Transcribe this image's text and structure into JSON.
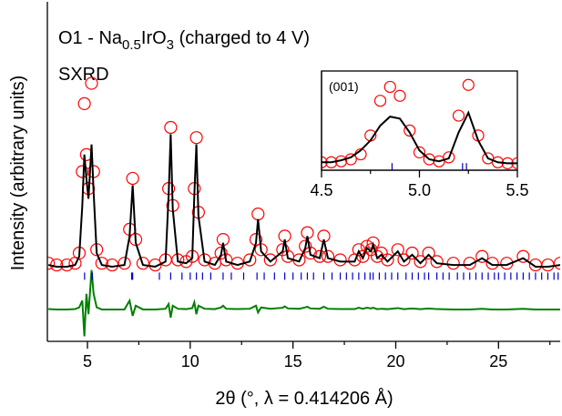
{
  "chart_data": [
    {
      "type": "xrd",
      "title_parts": [
        "O1 - Na",
        "0.5",
        "IrO",
        "3",
        " (charged to 4 V)"
      ],
      "label": "SXRD",
      "xlabel": "2θ (°, λ = 0.414206 Å)",
      "ylabel": "Intensity (arbitrary units)",
      "xlim": [
        3.05,
        28.0
      ],
      "ylim": [
        0,
        100
      ],
      "xticks": [
        5,
        10,
        15,
        20,
        25
      ],
      "xminorticks": [
        7.5,
        12.5,
        17.5,
        22.5,
        27.5
      ],
      "x": [
        3.1,
        3.5,
        4.0,
        4.4,
        4.6,
        4.75,
        4.85,
        4.95,
        5.05,
        5.2,
        5.3,
        5.45,
        5.7,
        6.2,
        6.8,
        7.05,
        7.2,
        7.35,
        7.7,
        8.3,
        8.8,
        8.95,
        9.05,
        9.15,
        9.4,
        9.8,
        10.1,
        10.2,
        10.3,
        10.4,
        10.7,
        11.2,
        11.5,
        11.6,
        11.75,
        12.3,
        12.9,
        13.2,
        13.3,
        13.45,
        13.9,
        14.5,
        14.6,
        14.75,
        15.3,
        15.6,
        15.7,
        15.85,
        16.3,
        16.5,
        16.7,
        17.3,
        18.0,
        18.2,
        18.4,
        18.6,
        18.8,
        18.9,
        19.1,
        19.3,
        19.6,
        20.1,
        20.4,
        20.8,
        21.2,
        21.6,
        22.0,
        22.8,
        23.6,
        24.2,
        24.7,
        25.4,
        26.2,
        26.8,
        27.4,
        28.0
      ],
      "series": [
        {
          "style": "circles",
          "color": "#ff0000",
          "values": [
            23,
            22.5,
            22.5,
            23,
            26,
            50,
            70,
            55,
            45,
            76,
            50,
            27,
            23,
            22.5,
            23,
            33,
            48,
            30,
            23,
            22.5,
            24,
            45,
            63,
            40,
            24,
            23.5,
            25,
            45,
            60,
            38,
            24,
            23,
            26,
            30,
            24,
            23,
            24,
            30,
            37.5,
            27,
            24,
            27,
            31,
            25,
            24,
            28,
            32,
            26,
            25,
            31,
            25,
            24,
            24,
            27,
            25,
            28,
            27,
            29,
            25,
            26,
            24,
            27,
            24,
            26,
            23.5,
            26,
            23.5,
            23,
            23,
            25,
            23,
            23,
            25,
            22.5,
            22.5,
            23
          ]
        },
        {
          "style": "line",
          "color": "#000000",
          "values": [
            22.5,
            22,
            22,
            22.5,
            25,
            40,
            55,
            48,
            42,
            58,
            44,
            26,
            22.5,
            22,
            22.5,
            31,
            46,
            29,
            22.5,
            22,
            23.5,
            43,
            61,
            39,
            23.5,
            23,
            24.5,
            43,
            58,
            37,
            23.5,
            22.5,
            25.5,
            29,
            23.5,
            22.5,
            23.5,
            29,
            36,
            26.5,
            23.5,
            26.5,
            30,
            24.5,
            23.5,
            27.5,
            31,
            25.5,
            24.5,
            30,
            24.5,
            23.5,
            23.5,
            26.5,
            24.5,
            27.5,
            26.5,
            28.5,
            24.5,
            25.5,
            23.5,
            26.5,
            23.5,
            25.5,
            23,
            25.5,
            23,
            22.5,
            22.5,
            24.5,
            22.5,
            22.5,
            24.5,
            22,
            22,
            22.5
          ]
        },
        {
          "style": "line",
          "color": "#008000",
          "values": [
            9.5,
            9.4,
            9.4,
            9.5,
            10,
            12,
            1.5,
            14,
            8,
            21,
            14,
            10,
            9.4,
            9.4,
            9.4,
            12,
            7.5,
            10.5,
            9.4,
            9.4,
            9.6,
            11,
            7,
            10.5,
            9.6,
            9.5,
            9.8,
            11.5,
            8,
            10.5,
            9.6,
            9.5,
            10,
            10.5,
            9.6,
            9.5,
            9.6,
            10.5,
            8.5,
            10,
            9.6,
            9.9,
            10.3,
            9.7,
            9.6,
            10,
            10.2,
            9.7,
            9.6,
            10.2,
            9.6,
            9.5,
            9.5,
            9.9,
            9.6,
            9.9,
            9.7,
            9.9,
            9.5,
            9.6,
            9.5,
            9.8,
            9.5,
            9.7,
            9.5,
            9.7,
            9.5,
            9.4,
            9.4,
            9.6,
            9.4,
            9.4,
            9.6,
            9.4,
            9.4,
            9.4
          ]
        }
      ],
      "reflections": {
        "color": "#0000cc",
        "y": 19.2,
        "x": [
          4.86,
          5.22,
          5.24,
          7.15,
          7.2,
          8.5,
          9.05,
          9.6,
          10.0,
          10.3,
          10.6,
          11.0,
          11.6,
          12.0,
          12.6,
          13.25,
          13.6,
          14.1,
          14.6,
          15.0,
          15.4,
          15.7,
          16.0,
          16.5,
          16.9,
          17.3,
          17.6,
          17.9,
          18.2,
          18.5,
          18.75,
          18.9,
          19.2,
          19.5,
          19.8,
          20.1,
          20.5,
          20.8,
          21.1,
          21.4,
          21.6,
          22.0,
          22.3,
          22.6,
          23.0,
          23.3,
          23.6,
          23.9,
          24.2,
          24.5,
          24.8,
          25.0,
          25.3,
          25.6,
          25.9,
          26.2,
          26.5,
          26.8,
          27.1,
          27.4,
          27.7,
          27.9
        ]
      }
    },
    {
      "type": "xrd",
      "label": "(001)",
      "xlim": [
        4.5,
        5.5
      ],
      "ylim": [
        0,
        100
      ],
      "xticks": [
        4.5,
        {
          "value": 5,
          "label": "5.0"
        },
        5.5
      ],
      "xminorticks": [
        4.75,
        5.25
      ],
      "x": [
        4.5,
        4.55,
        4.6,
        4.65,
        4.7,
        4.75,
        4.8,
        4.85,
        4.9,
        4.95,
        5.0,
        5.05,
        5.1,
        5.15,
        5.2,
        5.25,
        5.3,
        5.35,
        5.4,
        5.45,
        5.5
      ],
      "series": [
        {
          "style": "circles",
          "color": "#ff0000",
          "values": [
            8,
            8,
            9,
            11,
            16,
            35,
            70,
            84,
            75,
            40,
            18,
            11,
            9,
            13,
            55,
            86,
            35,
            12,
            8,
            7,
            7
          ]
        },
        {
          "style": "line",
          "color": "#000000",
          "values": [
            8,
            8,
            10,
            13,
            20,
            30,
            45,
            54,
            52,
            38,
            20,
            11,
            9,
            12,
            38,
            58,
            30,
            12,
            8,
            7,
            7
          ]
        }
      ],
      "reflections": {
        "color": "#0000cc",
        "y": 3.5,
        "x": [
          4.86,
          5.22,
          5.24
        ]
      }
    }
  ]
}
